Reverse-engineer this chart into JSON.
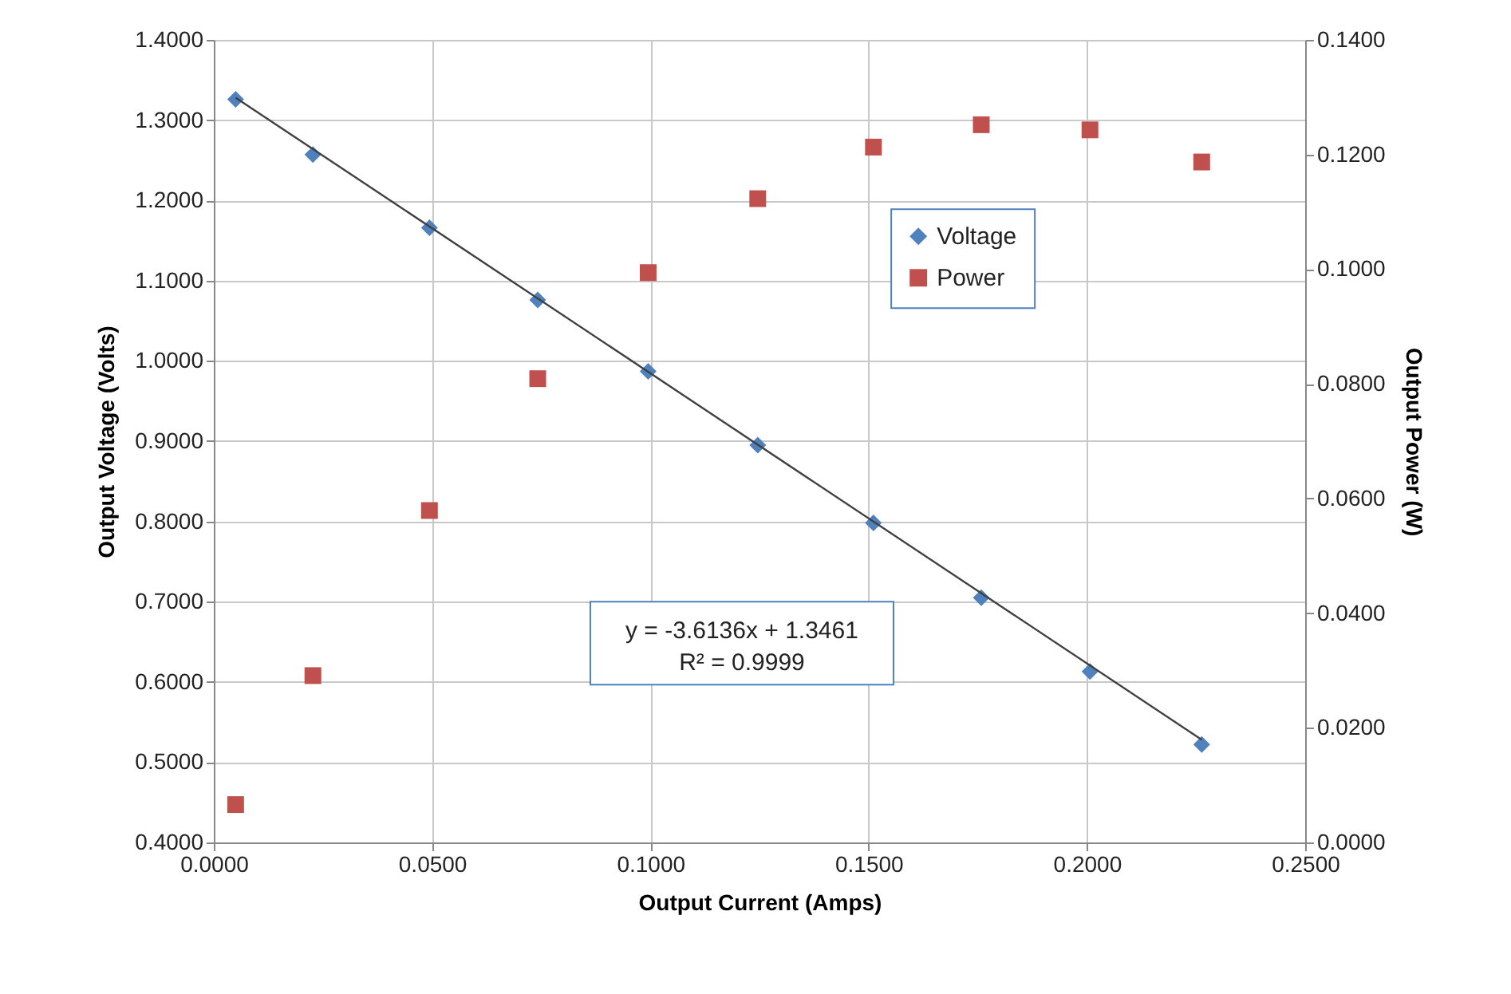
{
  "chart_data": {
    "type": "scatter",
    "xlabel": "Output Current (Amps)",
    "ylabel": "Output Voltage (Volts)",
    "y2label": "Output Power (W)",
    "x": [
      0.005,
      0.0227,
      0.0494,
      0.0742,
      0.0995,
      0.1246,
      0.1511,
      0.1758,
      0.2007,
      0.2263
    ],
    "series": [
      {
        "name": "Voltage",
        "color": "#4f81bd",
        "marker": "diamond",
        "values": [
          1.326,
          1.257,
          1.166,
          1.076,
          0.987,
          0.895,
          0.798,
          0.705,
          0.613,
          0.522
        ]
      },
      {
        "name": "Power",
        "color": "#c0504d",
        "marker": "square",
        "axis": "y2",
        "values": [
          0.0066,
          0.0291,
          0.0579,
          0.0809,
          0.0994,
          0.1123,
          0.1213,
          0.1252,
          0.1243,
          0.1187
        ]
      },
      {
        "type": "line",
        "color": "#404040",
        "line_style": "solid",
        "x": [
          0.005,
          0.2263
        ],
        "values": [
          1.328,
          0.528
        ]
      }
    ],
    "xlim": [
      0,
      0.25
    ],
    "xticks": [
      {
        "value": 0,
        "label": "0.0000"
      },
      {
        "value": 0.05,
        "label": "0.0500"
      },
      {
        "value": 0.1,
        "label": "0.1000"
      },
      {
        "value": 0.15,
        "label": "0.1500"
      },
      {
        "value": 0.2,
        "label": "0.2000"
      },
      {
        "value": 0.25,
        "label": "0.2500"
      }
    ],
    "ylim": [
      0.4,
      1.4
    ],
    "yticks": [
      {
        "value": 0.4,
        "label": "0.4000"
      },
      {
        "value": 0.5,
        "label": "0.5000"
      },
      {
        "value": 0.6,
        "label": "0.6000"
      },
      {
        "value": 0.7,
        "label": "0.7000"
      },
      {
        "value": 0.8,
        "label": "0.8000"
      },
      {
        "value": 0.9,
        "label": "0.9000"
      },
      {
        "value": 1.0,
        "label": "1.0000"
      },
      {
        "value": 1.1,
        "label": "1.1000"
      },
      {
        "value": 1.2,
        "label": "1.2000"
      },
      {
        "value": 1.3,
        "label": "1.3000"
      },
      {
        "value": 1.4,
        "label": "1.4000"
      }
    ],
    "y2lim": [
      0,
      0.14
    ],
    "y2ticks": [
      {
        "value": 0,
        "label": "0.0000"
      },
      {
        "value": 0.02,
        "label": "0.0200"
      },
      {
        "value": 0.04,
        "label": "0.0400"
      },
      {
        "value": 0.06,
        "label": "0.0600"
      },
      {
        "value": 0.08,
        "label": "0.0800"
      },
      {
        "value": 0.1,
        "label": "0.1000"
      },
      {
        "value": 0.12,
        "label": "0.1200"
      },
      {
        "value": 0.14,
        "label": "0.1400"
      }
    ],
    "annotations": [
      "y = -3.6136x + 1.3461",
      "R² = 0.9999"
    ],
    "grid": true,
    "legend": "top right"
  }
}
